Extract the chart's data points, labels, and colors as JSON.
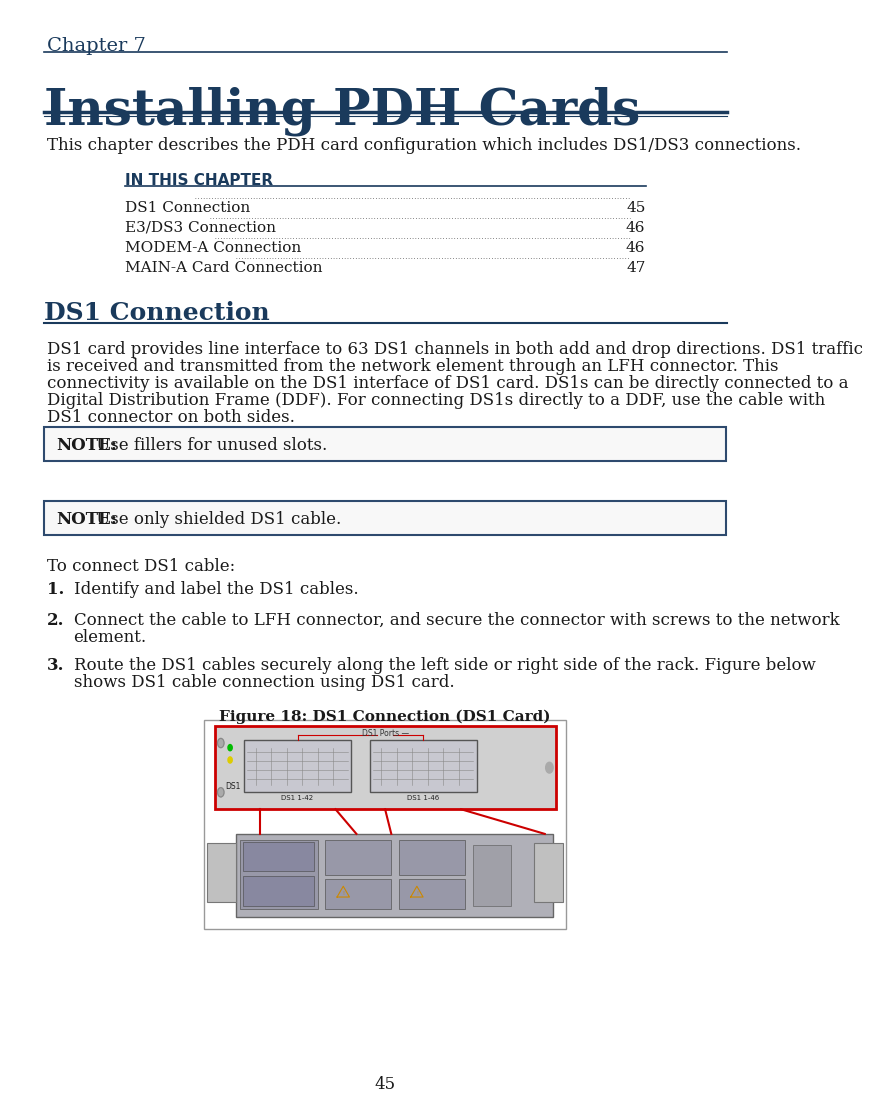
{
  "bg_color": "#ffffff",
  "chapter_label": "Chapter 7",
  "main_title": "Installing PDH Cards",
  "intro_text": "This chapter describes the PDH card configuration which includes DS1/DS3 connections.",
  "toc_header": "IN THIS CHAPTER",
  "toc_entries": [
    [
      "DS1 Connection",
      "45"
    ],
    [
      "E3/DS3 Connection",
      "46"
    ],
    [
      "MODEM-A Connection",
      "46"
    ],
    [
      "MAIN-A Card Connection",
      "47"
    ]
  ],
  "section_title": "DS1 Connection",
  "section_body_lines": [
    "DS1 card provides line interface to 63 DS1 channels in both add and drop directions. DS1 traffic",
    "is received and transmitted from the network element through an LFH connector. This",
    "connectivity is available on the DS1 interface of DS1 card. DS1s can be directly connected to a",
    "Digital Distribution Frame (DDF). For connecting DS1s directly to a DDF, use the cable with",
    "DS1 connector on both sides."
  ],
  "note1_bold": "NOTE:",
  "note1_text": " Use fillers for unused slots.",
  "note2_bold": "NOTE:",
  "note2_text": " Use only shielded DS1 cable.",
  "to_connect_label": "To connect DS1 cable:",
  "step1": "Identify and label the DS1 cables.",
  "step2a": "Connect the cable to LFH connector, and secure the connector with screws to the network",
  "step2b": "element.",
  "step3a": "Route the DS1 cables securely along the left side or right side of the rack. Figure below",
  "step3b": "shows DS1 cable connection using DS1 card.",
  "figure_caption": "Figure 18: DS1 Connection (DS1 Card)",
  "page_number": "45",
  "dark_blue": "#1a3a5c",
  "note_border": "#2e4a6e",
  "body_text_color": "#1a1a1a"
}
